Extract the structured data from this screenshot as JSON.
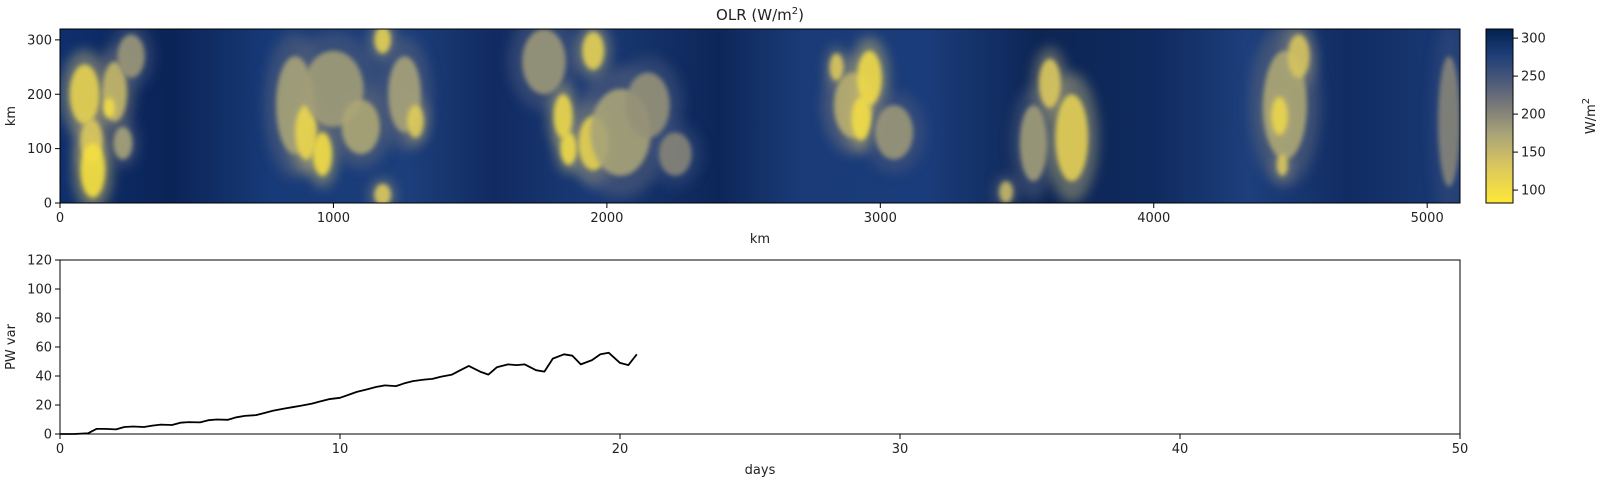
{
  "chart_data": [
    {
      "type": "heatmap",
      "title": "OLR (W/m",
      "title_sup": "2",
      "title_close": ")",
      "xlabel": "km",
      "ylabel": "km",
      "xlim": [
        0,
        5120
      ],
      "ylim": [
        0,
        320
      ],
      "xticks": [
        0,
        1000,
        2000,
        3000,
        4000,
        5000
      ],
      "yticks": [
        0,
        100,
        200,
        300
      ],
      "xtick_labels": [
        "0",
        "1000",
        "2000",
        "3000",
        "4000",
        "5000"
      ],
      "ytick_labels": [
        "0",
        "100",
        "200",
        "300"
      ],
      "colormap": "cividis_r",
      "colorbar": {
        "label": "W/m",
        "label_sup": "2",
        "range": [
          83,
          312
        ],
        "ticks": [
          100,
          150,
          200,
          250,
          300
        ],
        "tick_labels": [
          "100",
          "150",
          "200",
          "250",
          "300"
        ]
      },
      "cloud_features": [
        {
          "x": 90,
          "y": 200,
          "rx": 55,
          "ry": 55,
          "olr": 115
        },
        {
          "x": 115,
          "y": 115,
          "rx": 40,
          "ry": 40,
          "olr": 130
        },
        {
          "x": 120,
          "y": 60,
          "rx": 45,
          "ry": 50,
          "olr": 95
        },
        {
          "x": 200,
          "y": 205,
          "rx": 45,
          "ry": 55,
          "olr": 150
        },
        {
          "x": 180,
          "y": 175,
          "rx": 20,
          "ry": 18,
          "olr": 100
        },
        {
          "x": 230,
          "y": 110,
          "rx": 35,
          "ry": 30,
          "olr": 175
        },
        {
          "x": 260,
          "y": 270,
          "rx": 50,
          "ry": 40,
          "olr": 185
        },
        {
          "x": 860,
          "y": 180,
          "rx": 70,
          "ry": 90,
          "olr": 175
        },
        {
          "x": 900,
          "y": 130,
          "rx": 40,
          "ry": 50,
          "olr": 110
        },
        {
          "x": 960,
          "y": 90,
          "rx": 35,
          "ry": 40,
          "olr": 100
        },
        {
          "x": 1000,
          "y": 210,
          "rx": 110,
          "ry": 70,
          "olr": 180
        },
        {
          "x": 1100,
          "y": 140,
          "rx": 70,
          "ry": 50,
          "olr": 170
        },
        {
          "x": 1180,
          "y": 300,
          "rx": 30,
          "ry": 25,
          "olr": 120
        },
        {
          "x": 1180,
          "y": 15,
          "rx": 30,
          "ry": 20,
          "olr": 130
        },
        {
          "x": 1260,
          "y": 200,
          "rx": 60,
          "ry": 70,
          "olr": 175
        },
        {
          "x": 1300,
          "y": 150,
          "rx": 30,
          "ry": 30,
          "olr": 125
        },
        {
          "x": 1770,
          "y": 260,
          "rx": 80,
          "ry": 60,
          "olr": 185
        },
        {
          "x": 1840,
          "y": 160,
          "rx": 35,
          "ry": 40,
          "olr": 110
        },
        {
          "x": 1860,
          "y": 100,
          "rx": 30,
          "ry": 30,
          "olr": 105
        },
        {
          "x": 1950,
          "y": 280,
          "rx": 40,
          "ry": 35,
          "olr": 120
        },
        {
          "x": 1950,
          "y": 110,
          "rx": 55,
          "ry": 50,
          "olr": 115
        },
        {
          "x": 2050,
          "y": 130,
          "rx": 110,
          "ry": 80,
          "olr": 175
        },
        {
          "x": 2150,
          "y": 180,
          "rx": 80,
          "ry": 60,
          "olr": 190
        },
        {
          "x": 2250,
          "y": 90,
          "rx": 60,
          "ry": 40,
          "olr": 200
        },
        {
          "x": 2900,
          "y": 180,
          "rx": 70,
          "ry": 60,
          "olr": 160
        },
        {
          "x": 2960,
          "y": 230,
          "rx": 45,
          "ry": 50,
          "olr": 105
        },
        {
          "x": 2930,
          "y": 155,
          "rx": 35,
          "ry": 40,
          "olr": 100
        },
        {
          "x": 3050,
          "y": 130,
          "rx": 70,
          "ry": 50,
          "olr": 185
        },
        {
          "x": 2840,
          "y": 250,
          "rx": 25,
          "ry": 25,
          "olr": 130
        },
        {
          "x": 3560,
          "y": 110,
          "rx": 50,
          "ry": 70,
          "olr": 180
        },
        {
          "x": 3620,
          "y": 220,
          "rx": 40,
          "ry": 45,
          "olr": 130
        },
        {
          "x": 3700,
          "y": 120,
          "rx": 60,
          "ry": 80,
          "olr": 120
        },
        {
          "x": 3460,
          "y": 20,
          "rx": 25,
          "ry": 20,
          "olr": 150
        },
        {
          "x": 4480,
          "y": 180,
          "rx": 80,
          "ry": 100,
          "olr": 170
        },
        {
          "x": 4460,
          "y": 160,
          "rx": 30,
          "ry": 35,
          "olr": 110
        },
        {
          "x": 4530,
          "y": 270,
          "rx": 40,
          "ry": 40,
          "olr": 135
        },
        {
          "x": 4470,
          "y": 70,
          "rx": 20,
          "ry": 20,
          "olr": 130
        },
        {
          "x": 5080,
          "y": 150,
          "rx": 40,
          "ry": 120,
          "olr": 200
        }
      ]
    },
    {
      "type": "line",
      "title": "",
      "xlabel": "days",
      "ylabel": "PW var",
      "xlim": [
        0,
        50
      ],
      "ylim": [
        0,
        120
      ],
      "xticks": [
        0,
        10,
        20,
        30,
        40,
        50
      ],
      "yticks": [
        0,
        20,
        40,
        60,
        80,
        100,
        120
      ],
      "xtick_labels": [
        "0",
        "10",
        "20",
        "30",
        "40",
        "50"
      ],
      "ytick_labels": [
        "0",
        "20",
        "40",
        "60",
        "80",
        "100",
        "120"
      ],
      "series": [
        {
          "color": "#000000",
          "x": [
            0,
            0.5,
            1.0,
            1.3,
            1.6,
            2.0,
            2.3,
            2.6,
            3.0,
            3.3,
            3.6,
            4.0,
            4.3,
            4.6,
            5.0,
            5.3,
            5.6,
            6.0,
            6.3,
            6.6,
            7.0,
            7.3,
            7.6,
            8.0,
            8.3,
            8.6,
            9.0,
            9.3,
            9.6,
            10.0,
            10.3,
            10.6,
            11.0,
            11.3,
            11.6,
            12.0,
            12.3,
            12.6,
            13.0,
            13.3,
            13.6,
            14.0,
            14.3,
            14.6,
            15.0,
            15.3,
            15.6,
            16.0,
            16.3,
            16.6,
            17.0,
            17.3,
            17.6,
            18.0,
            18.3,
            18.6,
            19.0,
            19.3,
            19.6,
            20.0,
            20.3,
            20.6
          ],
          "y": [
            0,
            0,
            0.5,
            3.5,
            3.5,
            3.2,
            4.8,
            5.2,
            4.8,
            5.8,
            6.5,
            6.2,
            7.8,
            8.2,
            8.0,
            9.5,
            10.0,
            9.8,
            11.5,
            12.5,
            13.0,
            14.5,
            16.0,
            17.5,
            18.5,
            19.5,
            21.0,
            22.5,
            24.0,
            25.0,
            27.0,
            29.0,
            31.0,
            32.5,
            33.5,
            33.0,
            35.0,
            36.5,
            37.5,
            38.0,
            39.5,
            41.0,
            44.0,
            47.0,
            43.0,
            41.0,
            46.0,
            48.0,
            47.5,
            48.0,
            44.0,
            43.0,
            52.0,
            55.0,
            54.0,
            48.0,
            51.0,
            55.0,
            56.0,
            49.0,
            47.5,
            55.0
          ]
        }
      ]
    }
  ]
}
